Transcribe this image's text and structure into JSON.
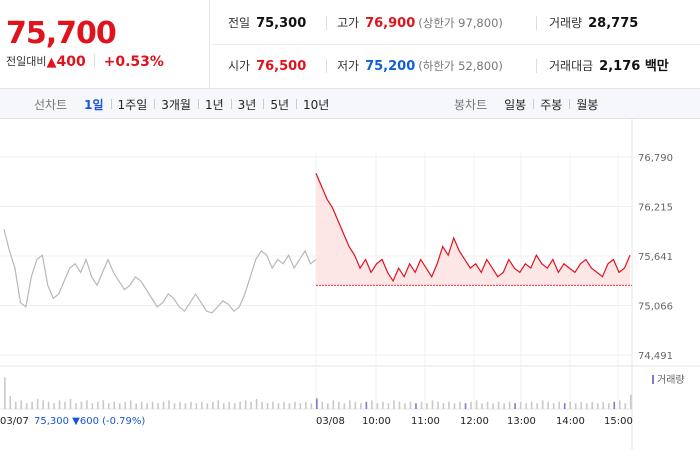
{
  "summary": {
    "price": "75,700",
    "change_label": "전일대비",
    "change_arrow": "▲",
    "change_amount": "400",
    "change_rate": "+0.53%",
    "stats": [
      {
        "key": "전일",
        "value": "75,300",
        "color": "normal",
        "sub": ""
      },
      {
        "key": "고가",
        "value": "76,900",
        "color": "up",
        "sub": "(상한가 97,800)"
      },
      {
        "key": "거래량",
        "value": "28,775",
        "color": "normal",
        "sub": ""
      },
      {
        "key": "시가",
        "value": "76,500",
        "color": "up",
        "sub": ""
      },
      {
        "key": "저가",
        "value": "75,200",
        "color": "down",
        "sub": "(하한가 52,800)"
      },
      {
        "key": "거래대금",
        "value": "2,176 백만",
        "color": "normal",
        "sub": ""
      }
    ]
  },
  "line_tabs": {
    "group_label": "선차트",
    "items": [
      "1일",
      "1주일",
      "3개월",
      "1년",
      "3년",
      "5년",
      "10년"
    ],
    "active": "1일"
  },
  "candle_tabs": {
    "group_label": "봉차트",
    "items": [
      "일봉",
      "주봉",
      "월봉"
    ]
  },
  "chart": {
    "volume_legend": "거래량",
    "prev_day_label": "03/07",
    "prev_day_summary": "75,300 ▼600 (-0.79%)",
    "colors": {
      "up": "#e0131d",
      "down": "#1060d6",
      "prev_line": "#b8b8b8",
      "fill": "#fde3e3",
      "volume": "#c9c9c9",
      "volume_accent": "#8a74c9"
    }
  },
  "chart_data": {
    "type": "line",
    "y_ticks": [
      "76,790",
      "76,215",
      "75,641",
      "75,066",
      "74,491"
    ],
    "ylim": [
      74491,
      76790
    ],
    "x_ticks": [
      "03/08",
      "10:00",
      "11:00",
      "12:00",
      "13:00",
      "14:00",
      "15:00"
    ],
    "base_price": 75300,
    "prev_day_series": {
      "name": "03/07",
      "values": [
        75950,
        75700,
        75500,
        75100,
        75050,
        75400,
        75600,
        75650,
        75300,
        75150,
        75200,
        75350,
        75500,
        75550,
        75450,
        75600,
        75400,
        75300,
        75450,
        75600,
        75450,
        75350,
        75250,
        75300,
        75400,
        75350,
        75250,
        75150,
        75050,
        75100,
        75200,
        75150,
        75050,
        75000,
        75100,
        75200,
        75100,
        75000,
        74980,
        75050,
        75120,
        75080,
        75000,
        75050,
        75200,
        75400,
        75600,
        75700,
        75650,
        75500,
        75600,
        75550,
        75650,
        75500,
        75600,
        75700,
        75550,
        75600
      ]
    },
    "today_series": {
      "name": "03/08",
      "values": [
        76600,
        76450,
        76300,
        76200,
        76050,
        75900,
        75750,
        75650,
        75500,
        75600,
        75450,
        75550,
        75600,
        75450,
        75350,
        75500,
        75400,
        75550,
        75450,
        75600,
        75500,
        75400,
        75550,
        75750,
        75650,
        75850,
        75700,
        75600,
        75500,
        75550,
        75450,
        75600,
        75500,
        75400,
        75450,
        75600,
        75500,
        75450,
        75550,
        75500,
        75650,
        75550,
        75500,
        75600,
        75450,
        75550,
        75500,
        75450,
        75550,
        75600,
        75500,
        75450,
        75400,
        75550,
        75600,
        75450,
        75500,
        75650
      ]
    },
    "volume": {
      "prev_day": [
        22,
        9,
        5,
        6,
        4,
        5,
        7,
        6,
        5,
        4,
        6,
        5,
        7,
        4,
        5,
        6,
        4,
        5,
        6,
        4,
        5,
        4,
        5,
        6,
        4,
        5,
        4,
        5,
        4,
        5,
        6,
        4,
        5,
        4,
        5,
        4,
        5,
        4,
        5,
        6,
        4,
        5,
        4,
        5,
        6,
        5,
        7,
        5,
        4,
        5,
        4,
        5,
        4,
        5,
        4,
        5,
        4,
        8
      ],
      "today": [
        7,
        5,
        4,
        6,
        5,
        4,
        6,
        5,
        4,
        5,
        6,
        4,
        5,
        4,
        6,
        5,
        4,
        5,
        4,
        5,
        4,
        6,
        5,
        4,
        5,
        4,
        5,
        4,
        5,
        6,
        4,
        5,
        4,
        5,
        4,
        5,
        4,
        5,
        4,
        5,
        4,
        6,
        5,
        4,
        5,
        4,
        5,
        4,
        5,
        4,
        5,
        4,
        5,
        4,
        5,
        6,
        4,
        10
      ]
    }
  }
}
